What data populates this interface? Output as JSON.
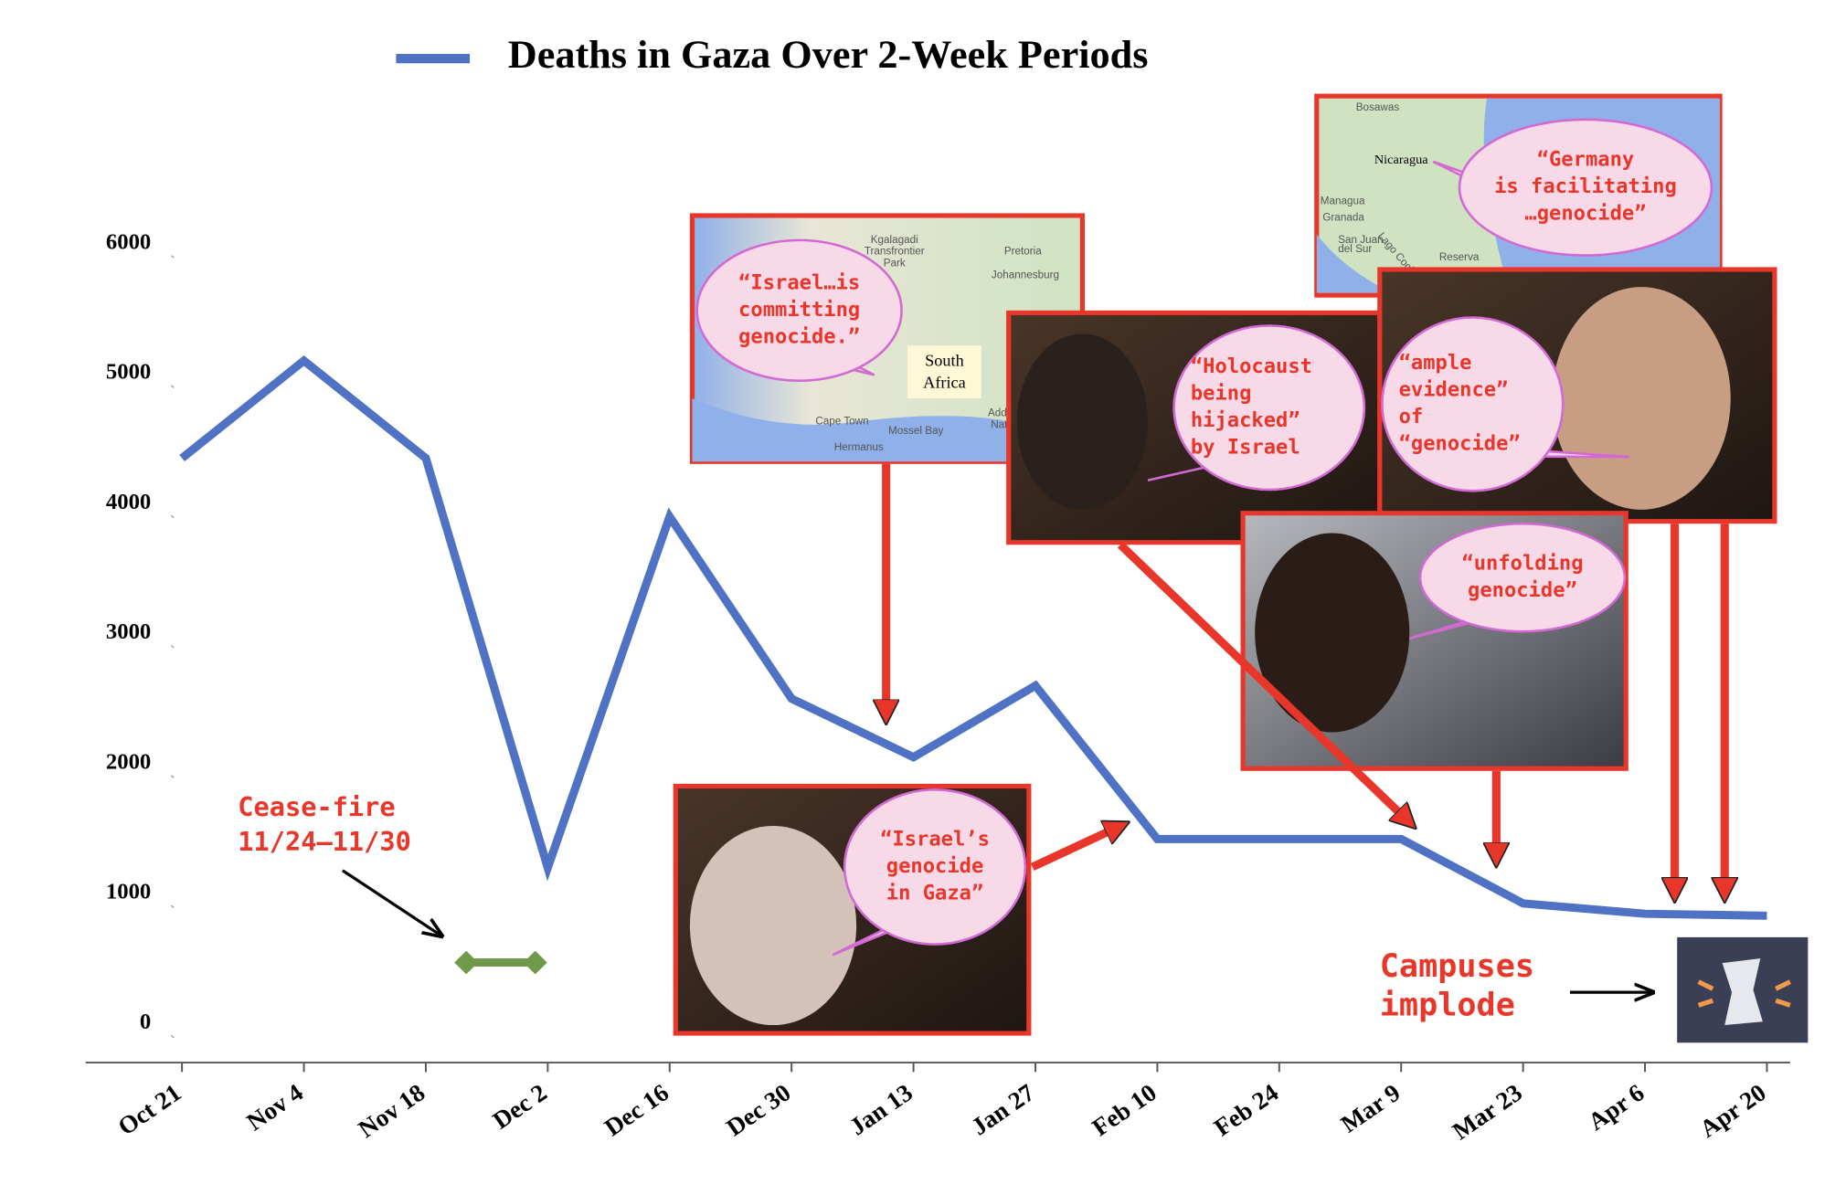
{
  "chart_data": {
    "type": "line",
    "categories": [
      "Oct 21",
      "Nov 4",
      "Nov 18",
      "Dec 2",
      "Dec 16",
      "Dec 30",
      "Jan 13",
      "Jan 27",
      "Feb 10",
      "Feb 24",
      "Mar 9",
      "Mar 23",
      "Apr 6",
      "Apr 20"
    ],
    "series": [
      {
        "name": "Deaths in Gaza Over 2-Week Periods",
        "color": "#4f72c4",
        "values": [
          4350,
          5100,
          4350,
          1200,
          3900,
          2500,
          2050,
          2600,
          1420,
          1420,
          1420,
          925,
          845,
          830
        ]
      }
    ],
    "ylim": [
      -300,
      6000
    ],
    "yticks": [
      0,
      1000,
      2000,
      3000,
      4000,
      5000,
      6000
    ],
    "legend": "top",
    "ceasefire": {
      "lines": [
        "Cease-fire",
        "11/24–11/30"
      ],
      "value": 470,
      "color": "#6f9a4a"
    },
    "campus": {
      "lines": [
        "Campuses",
        "implode"
      ]
    },
    "panels": [
      {
        "quote": [
          "“Israel…is",
          "committing",
          "genocide.”"
        ],
        "map_labels": [
          "Kgalagadi",
          "Transfrontier",
          "Park",
          "Pretoria",
          "Johannesburg",
          "South",
          "Africa",
          "Cape Town",
          "Mossel Bay",
          "Hermanus",
          "Addo Elephant",
          "National Park"
        ]
      },
      {
        "quote": [
          "“Germany",
          "is facilitating",
          "…genocide”"
        ],
        "map_labels": [
          "Bosawas",
          "Nicaragua",
          "Managua",
          "Granada",
          "San Juan",
          "del Sur",
          "Lago Cocibolca",
          "Reserva"
        ]
      },
      {
        "quote": [
          "“Holocaust",
          "being",
          "hijacked”",
          "by Israel"
        ]
      },
      {
        "quote": [
          "“ample",
          "evidence”",
          "of",
          "“genocide”"
        ]
      },
      {
        "quote": [
          "“unfolding",
          "genocide”"
        ]
      },
      {
        "quote": [
          "“Israel’s",
          "genocide",
          "in Gaza”"
        ]
      }
    ]
  }
}
